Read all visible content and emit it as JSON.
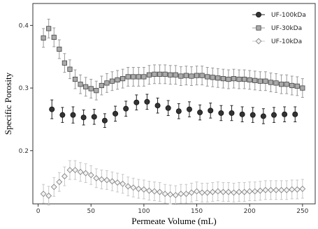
{
  "chart_data": {
    "type": "scatter",
    "xlabel": "Permeate Volume (mL)",
    "ylabel": "Specific Porosity",
    "xlim": [
      -5,
      262
    ],
    "ylim": [
      0.115,
      0.435
    ],
    "x_ticks": [
      0,
      50,
      100,
      150,
      200,
      250
    ],
    "y_ticks": [
      0.2,
      0.3,
      0.4
    ],
    "x_tick_labels": [
      "0",
      "50",
      "100",
      "150",
      "200",
      "250"
    ],
    "y_tick_labels": [
      "0.2",
      "0.3",
      "0.4"
    ],
    "grid": false,
    "legend_position": "top-right",
    "series": [
      {
        "name": "UF-100kDa",
        "marker": "circle",
        "color": "#333333",
        "error_color": "#222222",
        "x": [
          13,
          23,
          33,
          43,
          53,
          63,
          73,
          83,
          93,
          103,
          113,
          123,
          133,
          143,
          153,
          163,
          173,
          183,
          193,
          203,
          213,
          223,
          233,
          243
        ],
        "y": [
          0.266,
          0.257,
          0.257,
          0.253,
          0.254,
          0.248,
          0.259,
          0.267,
          0.277,
          0.278,
          0.272,
          0.268,
          0.263,
          0.266,
          0.261,
          0.264,
          0.26,
          0.26,
          0.258,
          0.257,
          0.255,
          0.257,
          0.258,
          0.258
        ],
        "err": [
          0.015,
          0.012,
          0.013,
          0.012,
          0.012,
          0.011,
          0.012,
          0.012,
          0.012,
          0.012,
          0.012,
          0.012,
          0.012,
          0.012,
          0.012,
          0.012,
          0.012,
          0.012,
          0.012,
          0.012,
          0.012,
          0.012,
          0.012,
          0.012
        ]
      },
      {
        "name": "UF-30kDa",
        "marker": "square",
        "color": "#aaaaaa",
        "error_color": "#999999",
        "x": [
          5,
          10,
          15,
          20,
          25,
          30,
          35,
          40,
          45,
          50,
          55,
          60,
          65,
          70,
          75,
          80,
          85,
          90,
          95,
          100,
          105,
          110,
          115,
          120,
          125,
          130,
          135,
          140,
          145,
          150,
          155,
          160,
          165,
          170,
          175,
          180,
          185,
          190,
          195,
          200,
          205,
          210,
          215,
          220,
          225,
          230,
          235,
          240,
          245,
          250
        ],
        "y": [
          0.38,
          0.395,
          0.381,
          0.362,
          0.34,
          0.33,
          0.314,
          0.306,
          0.302,
          0.299,
          0.296,
          0.304,
          0.308,
          0.311,
          0.313,
          0.315,
          0.318,
          0.318,
          0.318,
          0.318,
          0.321,
          0.322,
          0.322,
          0.322,
          0.321,
          0.321,
          0.319,
          0.32,
          0.319,
          0.32,
          0.32,
          0.318,
          0.317,
          0.316,
          0.315,
          0.314,
          0.315,
          0.314,
          0.314,
          0.313,
          0.312,
          0.311,
          0.311,
          0.309,
          0.308,
          0.306,
          0.306,
          0.304,
          0.303,
          0.3
        ],
        "err": [
          0.015,
          0.015,
          0.015,
          0.015,
          0.015,
          0.015,
          0.015,
          0.015,
          0.015,
          0.015,
          0.015,
          0.015,
          0.015,
          0.015,
          0.015,
          0.015,
          0.015,
          0.015,
          0.015,
          0.015,
          0.015,
          0.015,
          0.015,
          0.015,
          0.015,
          0.015,
          0.015,
          0.015,
          0.015,
          0.015,
          0.015,
          0.015,
          0.015,
          0.015,
          0.015,
          0.015,
          0.015,
          0.015,
          0.015,
          0.015,
          0.015,
          0.015,
          0.015,
          0.015,
          0.015,
          0.015,
          0.015,
          0.015,
          0.015,
          0.015
        ]
      },
      {
        "name": "UF-10kDa",
        "marker": "diamond",
        "color": "#f2f2f2",
        "error_color": "#c8c8c8",
        "x": [
          5,
          10,
          15,
          20,
          25,
          30,
          35,
          40,
          45,
          50,
          55,
          60,
          65,
          70,
          75,
          80,
          85,
          90,
          95,
          100,
          105,
          110,
          115,
          120,
          125,
          130,
          135,
          140,
          145,
          150,
          155,
          160,
          165,
          170,
          175,
          180,
          185,
          190,
          195,
          200,
          205,
          210,
          215,
          220,
          225,
          230,
          235,
          240,
          245,
          250
        ],
        "y": [
          0.131,
          0.128,
          0.142,
          0.15,
          0.159,
          0.169,
          0.169,
          0.166,
          0.164,
          0.161,
          0.156,
          0.154,
          0.153,
          0.151,
          0.149,
          0.147,
          0.143,
          0.141,
          0.139,
          0.138,
          0.136,
          0.135,
          0.134,
          0.131,
          0.13,
          0.129,
          0.131,
          0.131,
          0.133,
          0.135,
          0.133,
          0.133,
          0.134,
          0.135,
          0.134,
          0.134,
          0.133,
          0.134,
          0.134,
          0.135,
          0.135,
          0.136,
          0.137,
          0.137,
          0.137,
          0.137,
          0.137,
          0.138,
          0.138,
          0.139
        ],
        "err": [
          0.015,
          0.015,
          0.015,
          0.015,
          0.015,
          0.015,
          0.015,
          0.015,
          0.015,
          0.015,
          0.015,
          0.015,
          0.015,
          0.015,
          0.015,
          0.015,
          0.015,
          0.015,
          0.015,
          0.015,
          0.015,
          0.015,
          0.015,
          0.015,
          0.015,
          0.015,
          0.015,
          0.015,
          0.015,
          0.015,
          0.015,
          0.015,
          0.015,
          0.015,
          0.015,
          0.015,
          0.015,
          0.015,
          0.015,
          0.015,
          0.015,
          0.015,
          0.015,
          0.015,
          0.015,
          0.015,
          0.015,
          0.015,
          0.015,
          0.015
        ]
      }
    ]
  }
}
